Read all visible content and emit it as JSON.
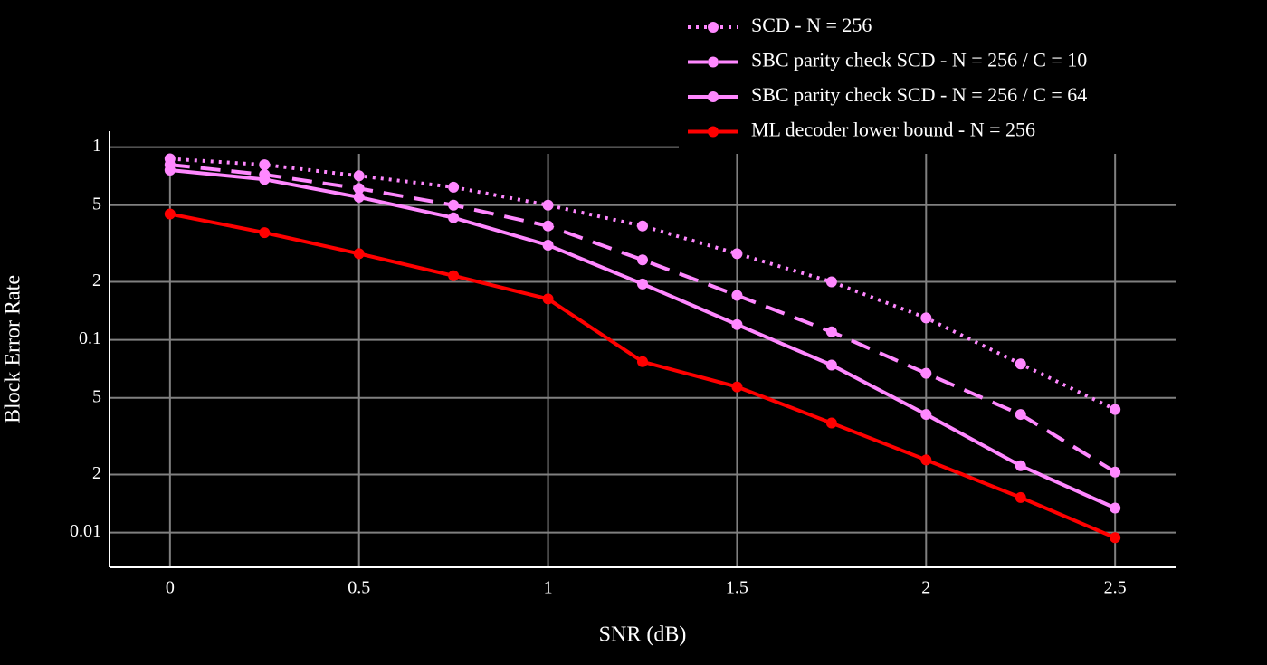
{
  "chart_data": {
    "type": "line",
    "x_label": "SNR (dB)",
    "y_label": "Block Error Rate",
    "x": [
      0,
      0.25,
      0.5,
      0.75,
      1,
      1.25,
      1.5,
      1.75,
      2,
      2.25,
      2.5
    ],
    "log_y": true,
    "grid": true,
    "legend": "top-right",
    "xlim": [
      -0.16,
      2.66
    ],
    "ylim": [
      0.0066,
      1.21
    ],
    "xticks": [
      0,
      0.5,
      1,
      1.5,
      2,
      2.5
    ],
    "yticks": [
      0.01,
      {
        "value": 0.02,
        "label": "2"
      },
      {
        "value": 0.05,
        "label": "5"
      },
      0.1,
      {
        "value": 0.2,
        "label": "2"
      },
      {
        "value": 0.5,
        "label": "5"
      },
      1
    ],
    "series": [
      {
        "name": "SCD - N = 256",
        "color": "#ff88ff",
        "dash": "dotted",
        "values": [
          0.87,
          0.81,
          0.71,
          0.62,
          0.5,
          0.39,
          0.28,
          0.2,
          0.13,
          0.075,
          0.0435
        ]
      },
      {
        "name": "SBC parity check SCD - N = 256 / C = 10",
        "color": "#ff88ff",
        "dash": "dashed",
        "values": [
          0.81,
          0.72,
          0.61,
          0.5,
          0.39,
          0.26,
          0.17,
          0.11,
          0.067,
          0.041,
          0.0206
        ]
      },
      {
        "name": "SBC parity check SCD - N = 256 / C = 64",
        "color": "#ff88ff",
        "dash": "solid",
        "values": [
          0.76,
          0.68,
          0.55,
          0.43,
          0.31,
          0.195,
          0.12,
          0.074,
          0.041,
          0.0222,
          0.0134
        ]
      },
      {
        "name": "ML decoder lower bound - N = 256",
        "color": "#ff0000",
        "dash": "solid",
        "values": [
          0.45,
          0.36,
          0.28,
          0.215,
          0.163,
          0.077,
          0.057,
          0.037,
          0.0238,
          0.0152,
          0.0094
        ]
      }
    ]
  }
}
